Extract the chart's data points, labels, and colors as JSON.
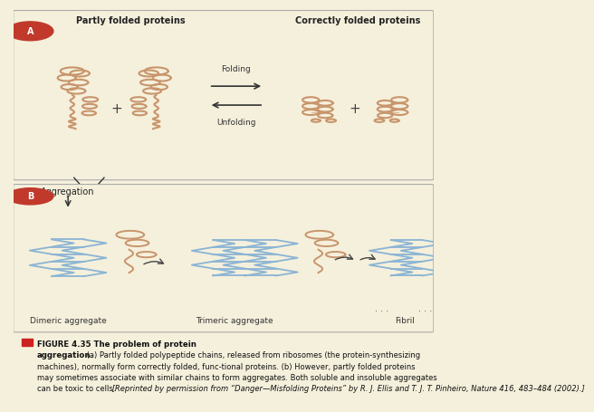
{
  "bg_color": "#f5f0dc",
  "panel_bg": "#f5f0dc",
  "border_color": "#999999",
  "protein_color": "#c8956c",
  "fibril_color": "#8ab4d4",
  "text_color": "#222222",
  "panel_a_label": "A",
  "panel_b_label": "B",
  "partly_folded_title": "Partly folded proteins",
  "correctly_folded_title": "Correctly folded proteins",
  "aggregation_label": "Aggregation",
  "folding_label": "Folding",
  "unfolding_label": "Unfolding",
  "dimeric_label": "Dimeric aggregate",
  "trimeric_label": "Trimeric aggregate",
  "fibril_label": "Fibril",
  "fig_number": "FIGURE 4.35",
  "fig_title": " The problem of protein",
  "fig_bold2": "aggregation.",
  "fig_reg": " (a) Partly folded polypeptide chains, released from ribosomes (the protein-synthesizing machines), normally form correctly folded, func-tional proteins. (b) However, partly folded proteins may sometimes associate with similar chains to form aggregates. Both soluble and insoluble aggregates can be toxic to cells.",
  "fig_italic": " [Reprinted by permission from “Danger—Misfolding Proteins” by R. J. Ellis and T. J. T. Pinheiro, Nature 416, 483–484 (2002).]"
}
